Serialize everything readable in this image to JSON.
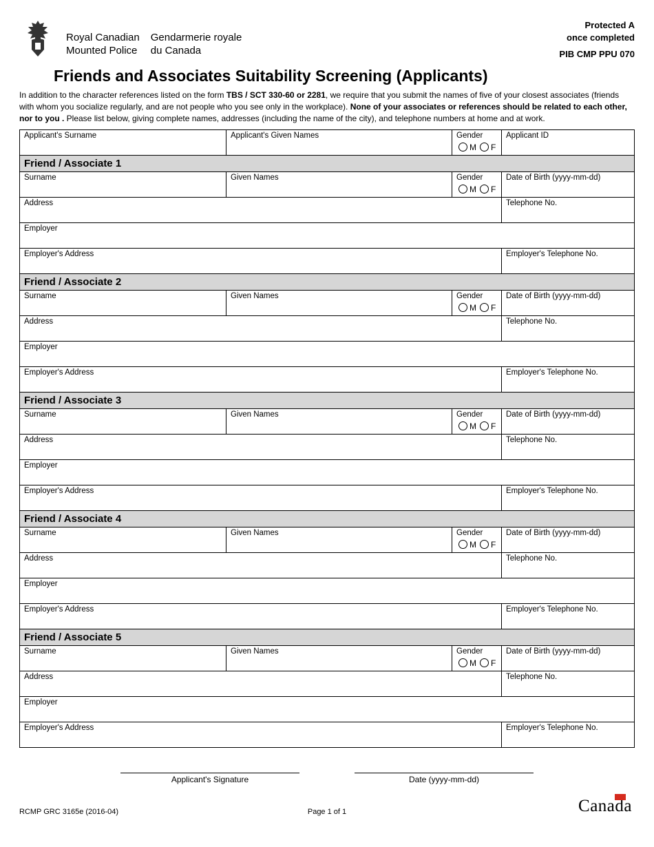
{
  "header": {
    "org_en_line1": "Royal Canadian",
    "org_en_line2": "Mounted Police",
    "org_fr_line1": "Gendarmerie royale",
    "org_fr_line2": "du Canada",
    "protected_line1": "Protected A",
    "protected_line2": "once completed",
    "pib": "PIB CMP PPU 070"
  },
  "title": "Friends and Associates Suitability Screening (Applicants)",
  "intro": {
    "part1": "In addition to the character references listed on the form ",
    "bold1": "TBS / SCT 330-60 or 2281",
    "part2": ", we require that you submit the names of five of your closest associates (friends with whom you socialize regularly, and are not people who you see only in the workplace). ",
    "bold2": "None of your associates or references should be related to each other, nor to you .",
    "part3": " Please list below, giving complete names, addresses (including the name of the city), and telephone numbers at home and at work."
  },
  "labels": {
    "applicant_surname": "Applicant's Surname",
    "applicant_given": "Applicant's Given Names",
    "gender": "Gender",
    "gender_m": "M",
    "gender_f": "F",
    "applicant_id": "Applicant ID",
    "surname": "Surname",
    "given": "Given Names",
    "dob": "Date of Birth (yyyy-mm-dd)",
    "address": "Address",
    "telephone": "Telephone No.",
    "employer": "Employer",
    "emp_address": "Employer's Address",
    "emp_telephone": "Employer's Telephone No."
  },
  "sections": [
    "Friend / Associate 1",
    "Friend / Associate 2",
    "Friend / Associate 3",
    "Friend / Associate 4",
    "Friend / Associate 5"
  ],
  "signature": {
    "sig_label": "Applicant's Signature",
    "date_label": "Date (yyyy-mm-dd)"
  },
  "footer": {
    "form_no": "RCMP GRC 3165e (2016-04)",
    "page": "Page 1 of 1",
    "wordmark": "Canada"
  }
}
